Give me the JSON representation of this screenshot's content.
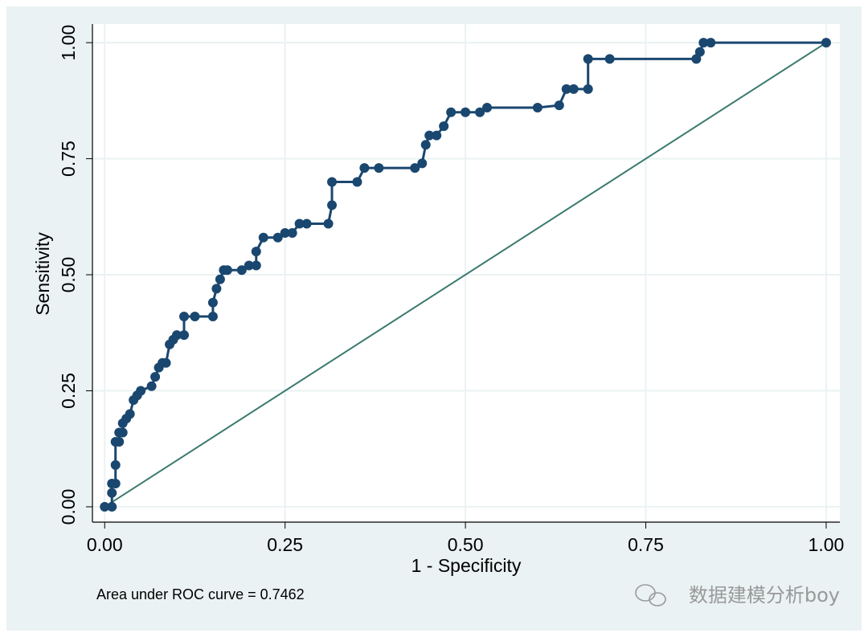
{
  "chart_data": {
    "type": "line",
    "x_label": "1 - Specificity",
    "y_label": "Sensitivity",
    "annotation": "Area under ROC curve = 0.7462",
    "watermark": "数据建模分析boy",
    "xlim": [
      -0.017,
      1.019
    ],
    "ylim": [
      -0.033,
      1.04
    ],
    "xticks": [
      {
        "value": 0,
        "label": "0.00"
      },
      {
        "value": 0.25,
        "label": "0.25"
      },
      {
        "value": 0.5,
        "label": "0.50"
      },
      {
        "value": 0.75,
        "label": "0.75"
      },
      {
        "value": 1,
        "label": "1.00"
      }
    ],
    "yticks": [
      {
        "value": 0,
        "label": "0.00"
      },
      {
        "value": 0.25,
        "label": "0.25"
      },
      {
        "value": 0.5,
        "label": "0.50"
      },
      {
        "value": 0.75,
        "label": "0.75"
      },
      {
        "value": 1,
        "label": "1.00"
      }
    ],
    "grid": true,
    "series": [
      {
        "color": "#1a476f",
        "markers": true,
        "x": [
          0,
          0.01,
          0.01,
          0.01,
          0.015,
          0.015,
          0.015,
          0.02,
          0.02,
          0.025,
          0.025,
          0.03,
          0.035,
          0.04,
          0.045,
          0.05,
          0.065,
          0.07,
          0.075,
          0.08,
          0.085,
          0.09,
          0.095,
          0.1,
          0.11,
          0.11,
          0.125,
          0.15,
          0.15,
          0.155,
          0.16,
          0.165,
          0.17,
          0.19,
          0.2,
          0.21,
          0.21,
          0.22,
          0.24,
          0.25,
          0.26,
          0.27,
          0.28,
          0.31,
          0.315,
          0.315,
          0.35,
          0.36,
          0.38,
          0.43,
          0.44,
          0.445,
          0.45,
          0.46,
          0.47,
          0.48,
          0.5,
          0.52,
          0.53,
          0.6,
          0.63,
          0.64,
          0.65,
          0.67,
          0.67,
          0.7,
          0.82,
          0.825,
          0.83,
          0.84,
          1.0
        ],
        "values": [
          0,
          0,
          0.03,
          0.05,
          0.05,
          0.09,
          0.14,
          0.14,
          0.16,
          0.16,
          0.18,
          0.19,
          0.2,
          0.23,
          0.24,
          0.25,
          0.26,
          0.28,
          0.3,
          0.31,
          0.31,
          0.35,
          0.36,
          0.37,
          0.37,
          0.41,
          0.41,
          0.41,
          0.44,
          0.47,
          0.49,
          0.51,
          0.51,
          0.51,
          0.52,
          0.52,
          0.55,
          0.58,
          0.58,
          0.59,
          0.59,
          0.61,
          0.61,
          0.61,
          0.65,
          0.7,
          0.7,
          0.73,
          0.73,
          0.73,
          0.74,
          0.78,
          0.8,
          0.8,
          0.82,
          0.85,
          0.85,
          0.85,
          0.86,
          0.86,
          0.865,
          0.9,
          0.9,
          0.9,
          0.965,
          0.965,
          0.965,
          0.98,
          1.0,
          1.0,
          1.0
        ]
      },
      {
        "color": "#3a7a6e",
        "markers": false,
        "x": [
          0,
          1
        ],
        "values": [
          0,
          1
        ]
      }
    ]
  }
}
